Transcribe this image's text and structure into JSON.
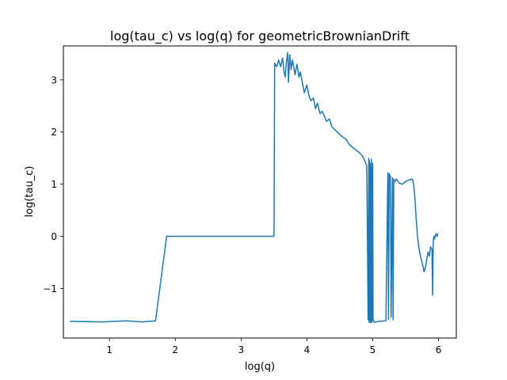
{
  "chart_data": {
    "type": "line",
    "title": "log(tau_c) vs log(q) for geometricBrownianDrift",
    "xlabel": "log(q)",
    "ylabel": "log(tau_c)",
    "xlim": [
      0.3,
      6.27
    ],
    "ylim": [
      -1.95,
      3.65
    ],
    "xticks": [
      1,
      2,
      3,
      4,
      5,
      6
    ],
    "xtick_labels": [
      "1",
      "2",
      "3",
      "4",
      "5",
      "6"
    ],
    "yticks": [
      -1,
      0,
      1,
      2,
      3
    ],
    "ytick_labels": [
      "−1",
      "0",
      "1",
      "2",
      "3"
    ],
    "grid": false,
    "legend": "none",
    "series": [
      {
        "color": "#1f77b4",
        "x": [
          0.4,
          0.9,
          1.25,
          1.5,
          1.7,
          1.87,
          3.5,
          3.51,
          3.54,
          3.57,
          3.6,
          3.63,
          3.65,
          3.67,
          3.69,
          3.71,
          3.72,
          3.74,
          3.76,
          3.78,
          3.8,
          3.82,
          3.85,
          3.88,
          3.9,
          3.93,
          3.96,
          4.0,
          4.03,
          4.06,
          4.1,
          4.13,
          4.16,
          4.2,
          4.23,
          4.27,
          4.3,
          4.34,
          4.38,
          4.42,
          4.46,
          4.5,
          4.55,
          4.6,
          4.65,
          4.7,
          4.75,
          4.8,
          4.84,
          4.88,
          4.91,
          4.93,
          4.94,
          4.945,
          4.95,
          4.955,
          4.96,
          4.965,
          4.97,
          4.975,
          4.98,
          4.985,
          4.99,
          4.995,
          5.0,
          5.005,
          5.01,
          5.02,
          5.1,
          5.2,
          5.23,
          5.24,
          5.25,
          5.27,
          5.28,
          5.3,
          5.31,
          5.32,
          5.33,
          5.34,
          5.36,
          5.4,
          5.45,
          5.5,
          5.55,
          5.6,
          5.62,
          5.64,
          5.66,
          5.68,
          5.7,
          5.72,
          5.74,
          5.76,
          5.78,
          5.8,
          5.82,
          5.84,
          5.86,
          5.88,
          5.9,
          5.91,
          5.92,
          5.93,
          5.94,
          5.96,
          5.98,
          5.99
        ],
        "y": [
          -1.63,
          -1.64,
          -1.62,
          -1.64,
          -1.62,
          0.0,
          0.0,
          3.32,
          3.25,
          3.38,
          3.25,
          3.42,
          3.18,
          3.05,
          3.35,
          3.52,
          2.95,
          3.48,
          3.2,
          3.38,
          3.25,
          3.1,
          3.3,
          3.05,
          3.15,
          2.95,
          2.75,
          2.9,
          2.7,
          2.6,
          2.65,
          2.45,
          2.55,
          2.35,
          2.4,
          2.3,
          2.2,
          2.25,
          2.1,
          2.05,
          2.0,
          1.95,
          1.9,
          1.85,
          1.75,
          1.7,
          1.65,
          1.6,
          1.55,
          1.45,
          1.35,
          -1.6,
          1.5,
          -1.65,
          1.45,
          -1.62,
          1.35,
          -1.66,
          1.4,
          -1.6,
          1.48,
          -1.65,
          1.3,
          -1.6,
          1.4,
          -1.62,
          -1.6,
          -1.65,
          -1.63,
          -1.62,
          1.22,
          -1.6,
          1.2,
          1.15,
          -1.55,
          1.12,
          -1.6,
          1.1,
          1.05,
          1.05,
          1.1,
          1.02,
          1.0,
          1.05,
          1.08,
          1.1,
          1.02,
          0.75,
          0.35,
          0.0,
          -0.2,
          -0.35,
          -0.45,
          -0.55,
          -0.68,
          -0.6,
          -0.45,
          -0.3,
          -0.38,
          -0.2,
          -0.25,
          -1.13,
          -0.1,
          0.0,
          -0.05,
          0.05,
          0.0,
          0.05
        ]
      }
    ]
  }
}
